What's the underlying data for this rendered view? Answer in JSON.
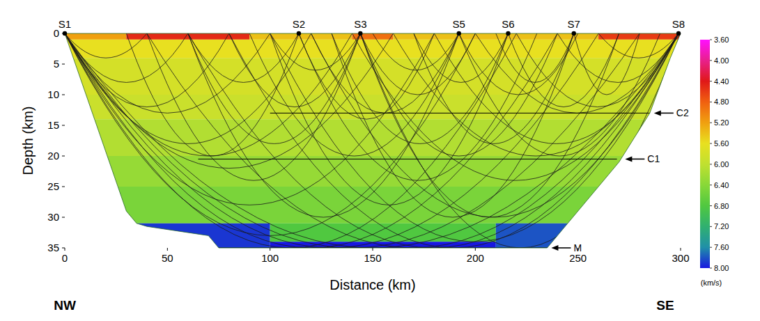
{
  "chart_data": {
    "type": "velocity_model",
    "xlabel": "Distance (km)",
    "ylabel": "Depth (km)",
    "xlim": [
      0,
      300
    ],
    "ylim": [
      0,
      35
    ],
    "xticks": [
      0,
      50,
      100,
      150,
      200,
      250,
      300
    ],
    "yticks": [
      0,
      5,
      10,
      15,
      20,
      25,
      30,
      35
    ],
    "left_label": "NW",
    "right_label": "SE",
    "stations": [
      {
        "label": "S1",
        "x": 0
      },
      {
        "label": "S2",
        "x": 114
      },
      {
        "label": "S3",
        "x": 144
      },
      {
        "label": "S5",
        "x": 192
      },
      {
        "label": "S6",
        "x": 216
      },
      {
        "label": "S7",
        "x": 248
      },
      {
        "label": "S8",
        "x": 299
      }
    ],
    "coverage": [
      [
        0,
        0
      ],
      [
        30,
        29
      ],
      [
        35,
        31
      ],
      [
        40,
        31.5
      ],
      [
        70,
        33
      ],
      [
        75,
        35
      ],
      [
        235,
        35
      ],
      [
        245,
        31
      ],
      [
        270,
        21
      ],
      [
        285,
        13
      ],
      [
        295,
        4
      ],
      [
        300,
        0
      ]
    ],
    "cells": [
      [
        0,
        30,
        0,
        1,
        5.2
      ],
      [
        30,
        90,
        0,
        1,
        4.5
      ],
      [
        90,
        140,
        0,
        1,
        5.4
      ],
      [
        140,
        160,
        0,
        1,
        4.9
      ],
      [
        160,
        260,
        0,
        1,
        5.4
      ],
      [
        260,
        300,
        0,
        1,
        4.6
      ],
      [
        0,
        300,
        1,
        4,
        5.6
      ],
      [
        0,
        300,
        4,
        10,
        5.8
      ],
      [
        0,
        300,
        10,
        14,
        5.9
      ],
      [
        0,
        300,
        14,
        20,
        6.1
      ],
      [
        0,
        300,
        20,
        25,
        6.3
      ],
      [
        0,
        300,
        25,
        31,
        6.5
      ],
      [
        0,
        100,
        31,
        35,
        7.9
      ],
      [
        100,
        210,
        31,
        34,
        6.8
      ],
      [
        100,
        210,
        34,
        35,
        8.0
      ],
      [
        210,
        300,
        31,
        35,
        7.8
      ]
    ],
    "boundaries": [
      {
        "label": "C2",
        "depth": 13,
        "x": [
          100,
          285
        ]
      },
      {
        "label": "C1",
        "depth": 20.5,
        "x": [
          65,
          269
        ]
      },
      {
        "label": "M",
        "depth": 35,
        "x": [
          75,
          236
        ]
      }
    ],
    "rays": [
      [
        0,
        40,
        4
      ],
      [
        0,
        60,
        8
      ],
      [
        0,
        80,
        12
      ],
      [
        0,
        100,
        13
      ],
      [
        0,
        120,
        18
      ],
      [
        0,
        140,
        20
      ],
      [
        0,
        160,
        22
      ],
      [
        0,
        180,
        28
      ],
      [
        0,
        200,
        33
      ],
      [
        0,
        220,
        35
      ],
      [
        0,
        240,
        35
      ],
      [
        0,
        260,
        35
      ],
      [
        0,
        280,
        35
      ],
      [
        0,
        300,
        35
      ],
      [
        299,
        260,
        4
      ],
      [
        299,
        240,
        8
      ],
      [
        299,
        220,
        12
      ],
      [
        299,
        200,
        13
      ],
      [
        299,
        180,
        18
      ],
      [
        299,
        160,
        20
      ],
      [
        299,
        140,
        24
      ],
      [
        299,
        120,
        30
      ],
      [
        299,
        100,
        34
      ],
      [
        299,
        80,
        35
      ],
      [
        299,
        60,
        35
      ],
      [
        299,
        40,
        35
      ],
      [
        144,
        100,
        6
      ],
      [
        144,
        80,
        12
      ],
      [
        144,
        60,
        18
      ],
      [
        144,
        40,
        24
      ],
      [
        144,
        200,
        10
      ],
      [
        144,
        240,
        20
      ],
      [
        144,
        270,
        30
      ],
      [
        144,
        300,
        35
      ],
      [
        192,
        150,
        6
      ],
      [
        192,
        120,
        13
      ],
      [
        192,
        90,
        20
      ],
      [
        192,
        60,
        30
      ],
      [
        192,
        250,
        10
      ],
      [
        192,
        290,
        20
      ],
      [
        114,
        60,
        8
      ],
      [
        114,
        30,
        20
      ],
      [
        114,
        180,
        14
      ],
      [
        114,
        230,
        24
      ],
      [
        216,
        170,
        8
      ],
      [
        216,
        130,
        18
      ],
      [
        216,
        100,
        28
      ],
      [
        216,
        270,
        12
      ],
      [
        248,
        210,
        8
      ],
      [
        248,
        170,
        18
      ],
      [
        248,
        130,
        30
      ],
      [
        248,
        280,
        10
      ]
    ],
    "colorbar": {
      "label": "(km/s)",
      "range": [
        3.6,
        8.0
      ],
      "ticks": [
        {
          "value": 3.6,
          "label": "3.60"
        },
        {
          "value": 4.0,
          "label": "4.00"
        },
        {
          "value": 4.4,
          "label": "4.40"
        },
        {
          "value": 4.8,
          "label": "4.80"
        },
        {
          "value": 5.2,
          "label": "5.20"
        },
        {
          "value": 5.6,
          "label": "5.60"
        },
        {
          "value": 6.0,
          "label": "6.00"
        },
        {
          "value": 6.4,
          "label": "6.40"
        },
        {
          "value": 6.8,
          "label": "6.80"
        },
        {
          "value": 7.2,
          "label": "7.20"
        },
        {
          "value": 7.6,
          "label": "7.60"
        },
        {
          "value": 8.0,
          "label": "8.00"
        }
      ],
      "colors": [
        "#ff10ff",
        "#e8208c",
        "#e01818",
        "#f06010",
        "#f0a010",
        "#e8e020",
        "#c0e030",
        "#88d838",
        "#50c840",
        "#30b070",
        "#2090a8",
        "#1818e0"
      ]
    }
  }
}
